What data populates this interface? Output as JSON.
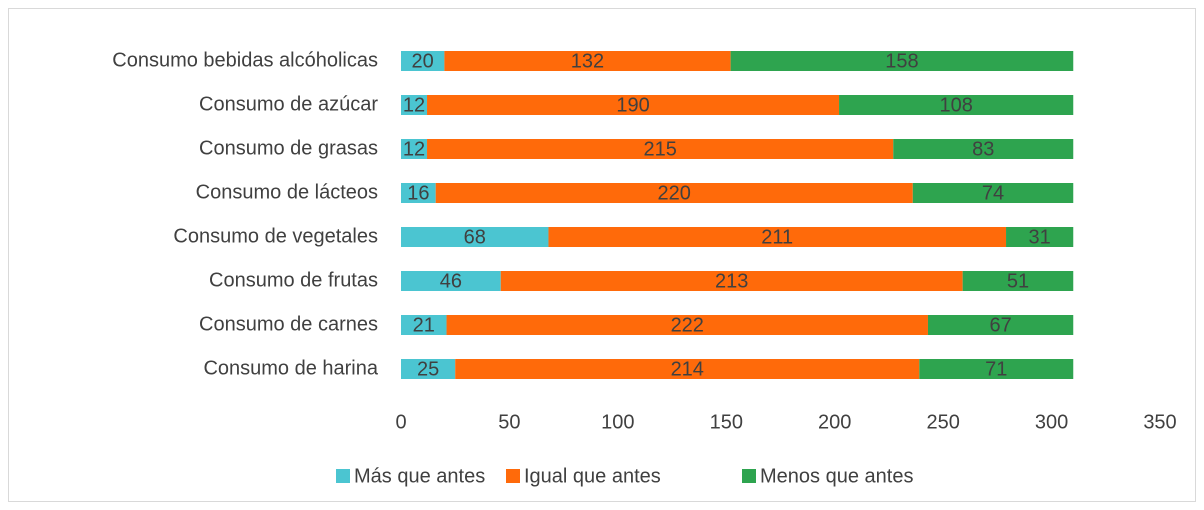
{
  "chart_data": {
    "type": "bar",
    "orientation": "horizontal",
    "stacked": true,
    "categories": [
      "Consumo bebidas alcóholicas",
      "Consumo de azúcar",
      "Consumo de grasas",
      "Consumo de lácteos",
      "Consumo de vegetales",
      "Consumo de frutas",
      "Consumo de carnes",
      "Consumo de harina"
    ],
    "series": [
      {
        "name": "Más que antes",
        "color": "#4bc5d1",
        "values": [
          20,
          12,
          12,
          16,
          68,
          46,
          21,
          25
        ]
      },
      {
        "name": "Igual que antes",
        "color": "#ff6a0a",
        "values": [
          132,
          190,
          215,
          220,
          211,
          213,
          222,
          214
        ]
      },
      {
        "name": "Menos que antes",
        "color": "#2ea44f",
        "values": [
          158,
          108,
          83,
          74,
          31,
          51,
          67,
          71
        ]
      }
    ],
    "xlim": [
      0,
      350
    ],
    "xticks": [
      0,
      50,
      100,
      150,
      200,
      250,
      300,
      350
    ],
    "grid": false,
    "legend": "bottom"
  }
}
